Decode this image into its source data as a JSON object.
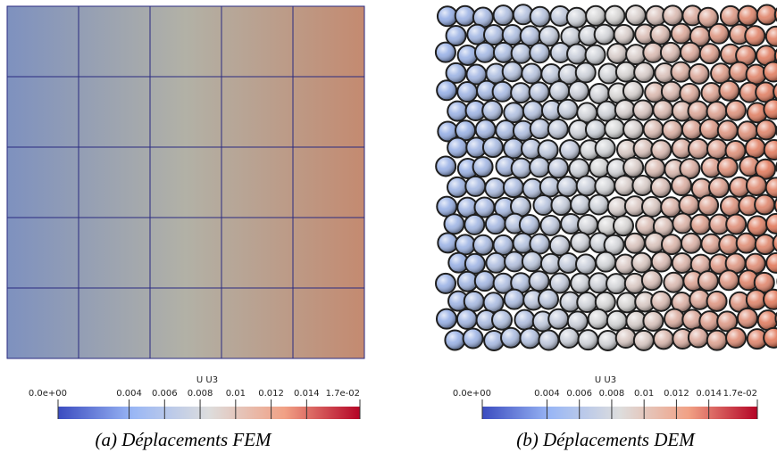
{
  "panels": [
    {
      "caption": "(a) Déplacements FEM",
      "colorbar": {
        "title": "U U3",
        "range": [
          0,
          0.017
        ],
        "ticks": [
          {
            "value": 0,
            "label": "0.0e+00"
          },
          0.004,
          0.006,
          0.008,
          0.01,
          0.012,
          0.014,
          {
            "value": 0.017,
            "label": "1.7e-02"
          }
        ]
      }
    },
    {
      "caption": "(b) Déplacements DEM",
      "colorbar": {
        "title": "U U3",
        "range": [
          0,
          0.017
        ],
        "ticks": [
          {
            "value": 0,
            "label": "0.0e+00"
          },
          0.004,
          0.006,
          0.008,
          0.01,
          0.012,
          0.014,
          {
            "value": 0.017,
            "label": "1.7e-02"
          }
        ]
      }
    }
  ]
}
